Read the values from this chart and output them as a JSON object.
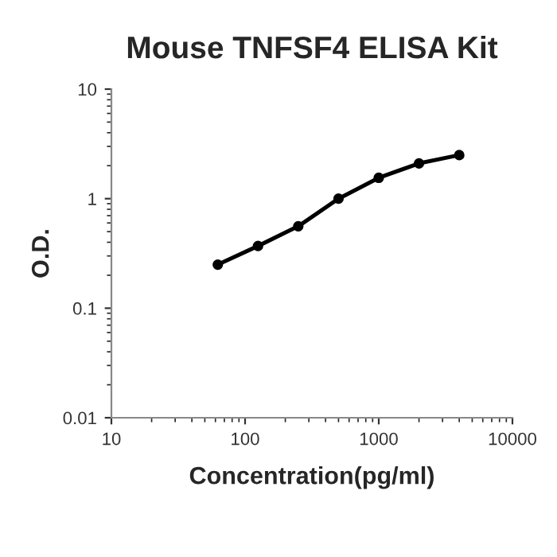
{
  "chart_data": {
    "type": "line",
    "title": "Mouse TNFSF4 ELISA Kit",
    "xlabel": "Concentration(pg/ml)",
    "ylabel": "O.D.",
    "x": [
      62.5,
      125,
      250,
      500,
      1000,
      2000,
      4000
    ],
    "series": [
      {
        "color": "#000000",
        "values": [
          0.25,
          0.37,
          0.56,
          1.0,
          1.55,
          2.1,
          2.5
        ]
      }
    ],
    "log": "xy",
    "xlim": [
      10,
      10000
    ],
    "xticks": [
      10,
      100,
      1000,
      10000
    ],
    "ylim": [
      0.01,
      10
    ],
    "yticks": [
      0.01,
      0.1,
      1,
      10
    ],
    "marker": "circle",
    "line_style": "solid",
    "grid": false,
    "legend": false
  }
}
